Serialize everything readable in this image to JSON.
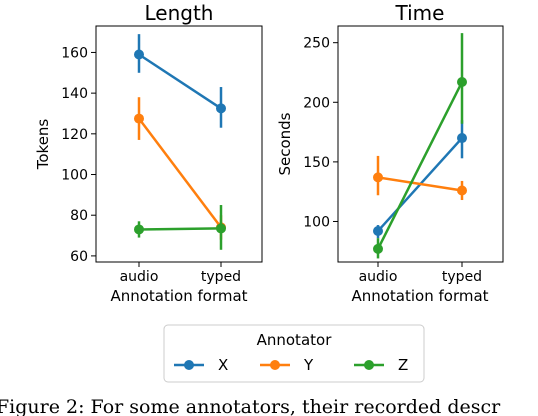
{
  "chart_data": [
    {
      "type": "line",
      "title": "Length",
      "xlabel": "Annotation format",
      "ylabel": "Tokens",
      "categories": [
        "audio",
        "typed"
      ],
      "yticks": [
        60,
        80,
        100,
        120,
        140,
        160
      ],
      "ylim": [
        57,
        173
      ],
      "series": [
        {
          "name": "X",
          "values": [
            159,
            132.5
          ],
          "err_low": [
            150,
            123
          ],
          "err_high": [
            169,
            143
          ]
        },
        {
          "name": "Y",
          "values": [
            127.5,
            74
          ],
          "err_low": [
            117,
            68
          ],
          "err_high": [
            138,
            80
          ]
        },
        {
          "name": "Z",
          "values": [
            73,
            73.5
          ],
          "err_low": [
            69,
            63
          ],
          "err_high": [
            77,
            85
          ]
        }
      ],
      "grid": false
    },
    {
      "type": "line",
      "title": "Time",
      "xlabel": "Annotation format",
      "ylabel": "Seconds",
      "categories": [
        "audio",
        "typed"
      ],
      "yticks": [
        100,
        150,
        200,
        250
      ],
      "ylim": [
        66,
        264
      ],
      "series": [
        {
          "name": "X",
          "values": [
            92,
            170
          ],
          "err_low": [
            86,
            153
          ],
          "err_high": [
            97,
            185
          ]
        },
        {
          "name": "Y",
          "values": [
            137,
            126
          ],
          "err_low": [
            122,
            118
          ],
          "err_high": [
            155,
            134
          ]
        },
        {
          "name": "Z",
          "values": [
            77,
            217
          ],
          "err_low": [
            69,
            182
          ],
          "err_high": [
            86,
            258
          ]
        }
      ],
      "grid": false
    }
  ],
  "legend": {
    "title": "Annotator",
    "entries": [
      "X",
      "Y",
      "Z"
    ],
    "placement": "bottom-center"
  },
  "colors": {
    "X": "#1f77b4",
    "Y": "#ff7f0e",
    "Z": "#2ca02c"
  },
  "caption": "Figure 2: For some annotators, their recorded descr"
}
